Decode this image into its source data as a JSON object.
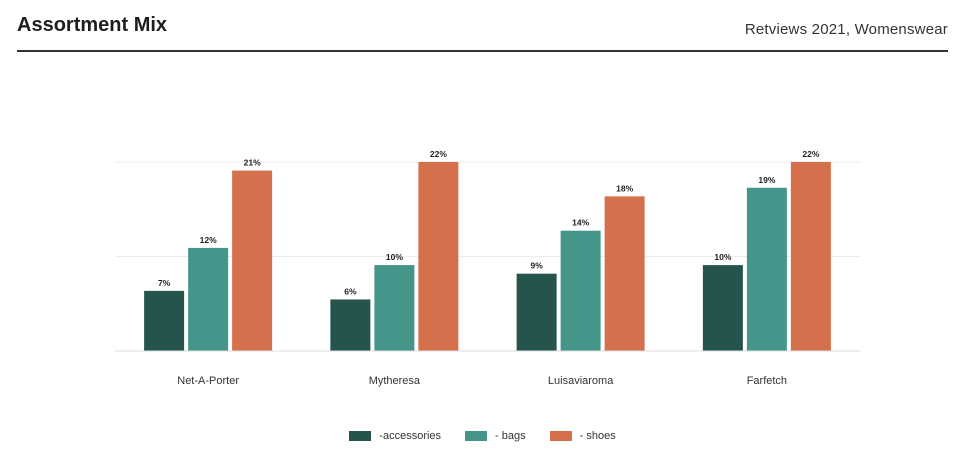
{
  "header": {
    "title": "Assortment Mix",
    "subtitle": "Retviews 2021, Womenswear"
  },
  "colors": {
    "accessories": "#24544c",
    "bags": "#44968a",
    "shoes": "#d4704c"
  },
  "chart_data": {
    "type": "bar",
    "categories": [
      "Net-A-Porter",
      "Mytheresa",
      "Luisaviaroma",
      "Farfetch"
    ],
    "series": [
      {
        "name": "-accessories",
        "values": [
          7,
          6,
          9,
          10
        ],
        "labels": [
          "7%",
          "6%",
          "9%",
          "10%"
        ]
      },
      {
        "name": "- bags",
        "values": [
          12,
          10,
          14,
          19
        ],
        "labels": [
          "12%",
          "10%",
          "14%",
          "19%"
        ]
      },
      {
        "name": "- shoes",
        "values": [
          21,
          22,
          18,
          22
        ],
        "labels": [
          "21%",
          "22%",
          "18%",
          "22%"
        ]
      }
    ],
    "ylim": [
      0,
      22
    ],
    "grid": true,
    "legend": "bottom-center"
  }
}
